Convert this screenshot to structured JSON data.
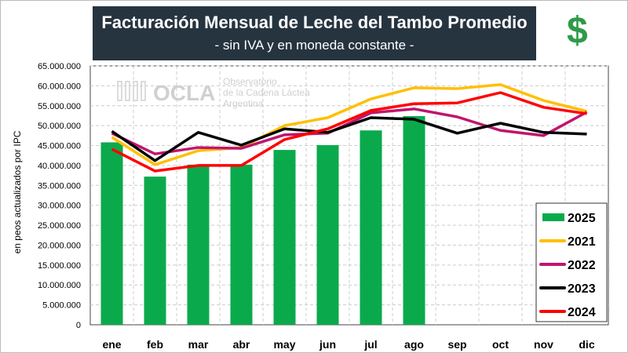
{
  "title": "Facturación Mensual de Leche del Tambo Promedio",
  "subtitle": "- sin IVA y en moneda constante -",
  "currency_icon": "$",
  "watermark": {
    "logo": "OCLA",
    "text": [
      "Observatorio",
      "de la Cadena Láctea",
      "Argentina"
    ]
  },
  "chart_data": {
    "type": "bar+line",
    "title": "Facturación Mensual de Leche del Tambo Promedio",
    "subtitle": "- sin IVA y en moneda constante -",
    "ylabel": "en peos actualizados por IPC",
    "xlabel": "",
    "ylim": [
      0,
      65000000
    ],
    "yticks": [
      "0",
      "5.000.000",
      "10.000.000",
      "15.000.000",
      "20.000.000",
      "25.000.000",
      "30.000.000",
      "35.000.000",
      "40.000.000",
      "45.000.000",
      "50.000.000",
      "55.000.000",
      "60.000.000",
      "65.000.000"
    ],
    "categories": [
      "ene",
      "feb",
      "mar",
      "abr",
      "may",
      "jun",
      "jul",
      "ago",
      "sep",
      "oct",
      "nov",
      "dic"
    ],
    "grid": true,
    "legend_placement": "bottom-right",
    "series": [
      {
        "name": "2025",
        "type": "bar",
        "color": "#0aaa4c",
        "values": [
          45800000,
          37200000,
          40200000,
          40200000,
          43900000,
          45100000,
          48800000,
          52400000,
          null,
          null,
          null,
          null
        ]
      },
      {
        "name": "2021",
        "type": "line",
        "color": "#ffbf00",
        "values": [
          47100000,
          40200000,
          43700000,
          44500000,
          50000000,
          52000000,
          56700000,
          59500000,
          59300000,
          60300000,
          56300000,
          53600000
        ]
      },
      {
        "name": "2022",
        "type": "line",
        "color": "#c0156e",
        "values": [
          48100000,
          42900000,
          44500000,
          44300000,
          47700000,
          48100000,
          53200000,
          54200000,
          52200000,
          48800000,
          47500000,
          53400000
        ]
      },
      {
        "name": "2023",
        "type": "line",
        "color": "#000000",
        "values": [
          48600000,
          41200000,
          48300000,
          45100000,
          49200000,
          48300000,
          52000000,
          51600000,
          48100000,
          50600000,
          48300000,
          47900000
        ]
      },
      {
        "name": "2024",
        "type": "line",
        "color": "#ff0000",
        "values": [
          44100000,
          38600000,
          40000000,
          40000000,
          46500000,
          49200000,
          53800000,
          55500000,
          55700000,
          58300000,
          54600000,
          53000000
        ]
      }
    ]
  }
}
